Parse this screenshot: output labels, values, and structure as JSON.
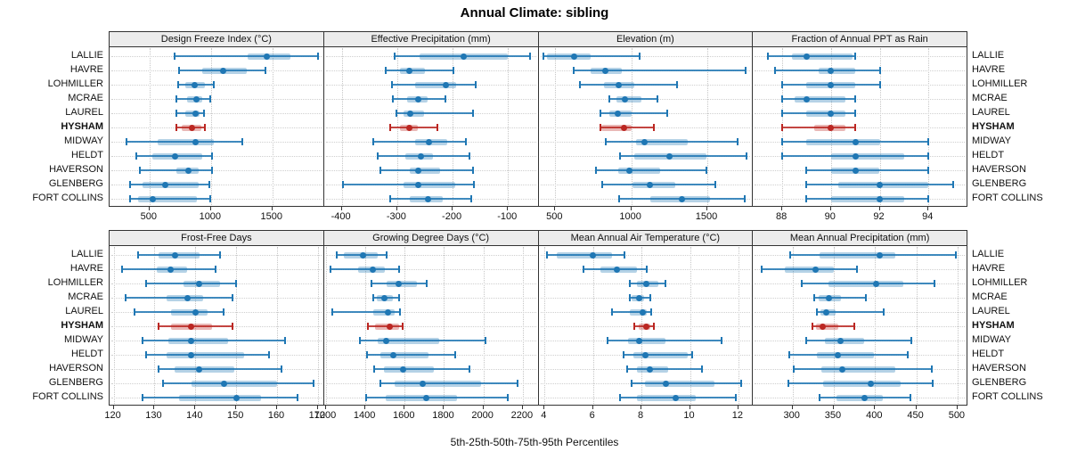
{
  "title": "Annual Climate: sibling",
  "footer": "5th-25th-50th-75th-95th Percentiles",
  "colors": {
    "series": "#1f77b4",
    "highlight": "#bb2722",
    "header_bg": "#ececec",
    "panel_border": "#333333",
    "grid": "#c9c9c9"
  },
  "chart_data": {
    "type": "dot-whisker-trellis",
    "layout": {
      "rows": 2,
      "cols": 4,
      "grid": "dotted",
      "station_labels": "both-sides"
    },
    "percentile_levels": [
      5,
      25,
      50,
      75,
      95
    ],
    "stations": [
      "LALLIE",
      "HAVRE",
      "LOHMILLER",
      "MCRAE",
      "LAUREL",
      "HYSHAM",
      "MIDWAY",
      "HELDT",
      "HAVERSON",
      "GLENBERG",
      "FORT COLLINS"
    ],
    "highlighted_station": "HYSHAM",
    "panels": [
      {
        "title": "Design Freeze Index (°C)",
        "row": 0,
        "col": 0,
        "ticks": [
          500,
          1000,
          1500
        ],
        "xlim": [
          175,
          1920
        ],
        "series": [
          [
            705,
            1300,
            1455,
            1650,
            1870
          ],
          [
            740,
            930,
            1100,
            1290,
            1440
          ],
          [
            730,
            790,
            865,
            950,
            1020
          ],
          [
            722,
            805,
            885,
            930,
            995
          ],
          [
            715,
            790,
            875,
            910,
            945
          ],
          [
            715,
            760,
            845,
            920,
            950
          ],
          [
            310,
            570,
            875,
            1020,
            1255
          ],
          [
            395,
            525,
            705,
            930,
            1005
          ],
          [
            420,
            715,
            820,
            900,
            1010
          ],
          [
            345,
            445,
            625,
            900,
            985
          ],
          [
            340,
            410,
            530,
            885,
            995
          ]
        ]
      },
      {
        "title": "Effective Precipitation (mm)",
        "row": 0,
        "col": 1,
        "ticks": [
          -400,
          -300,
          -200,
          -100
        ],
        "xlim": [
          -432,
          -45
        ],
        "series": [
          [
            -305,
            -260,
            -180,
            -100,
            -60
          ],
          [
            -320,
            -295,
            -278,
            -250,
            -198
          ],
          [
            -310,
            -268,
            -212,
            -194,
            -158
          ],
          [
            -308,
            -282,
            -262,
            -245,
            -213
          ],
          [
            -302,
            -288,
            -277,
            -252,
            -163
          ],
          [
            -312,
            -295,
            -278,
            -262,
            -228
          ],
          [
            -343,
            -268,
            -243,
            -210,
            -176
          ],
          [
            -335,
            -285,
            -257,
            -235,
            -170
          ],
          [
            -330,
            -278,
            -262,
            -222,
            -163
          ],
          [
            -398,
            -288,
            -262,
            -196,
            -162
          ],
          [
            -313,
            -277,
            -245,
            -218,
            -167
          ]
        ]
      },
      {
        "title": "Elevation (m)",
        "row": 0,
        "col": 2,
        "ticks": [
          500,
          1000,
          1500
        ],
        "xlim": [
          390,
          1800
        ],
        "series": [
          [
            420,
            445,
            625,
            735,
            1055
          ],
          [
            620,
            735,
            827,
            940,
            1750
          ],
          [
            660,
            820,
            915,
            1020,
            1300
          ],
          [
            855,
            905,
            960,
            1065,
            1170
          ],
          [
            795,
            855,
            910,
            1000,
            1235
          ],
          [
            795,
            805,
            950,
            1005,
            1150
          ],
          [
            830,
            1030,
            1085,
            1370,
            1700
          ],
          [
            925,
            1020,
            1250,
            1495,
            1755
          ],
          [
            765,
            915,
            985,
            1190,
            1495
          ],
          [
            810,
            1005,
            1120,
            1290,
            1555
          ],
          [
            920,
            1125,
            1335,
            1520,
            1745
          ]
        ]
      },
      {
        "title": "Fraction of Annual PPT as Rain",
        "row": 0,
        "col": 3,
        "ticks": [
          88,
          90,
          92,
          94
        ],
        "xlim": [
          86.8,
          95.6
        ],
        "series": [
          [
            87.4,
            88.4,
            89,
            90.9,
            91
          ],
          [
            87.7,
            89.5,
            90,
            91,
            92
          ],
          [
            88,
            89,
            90,
            91,
            92
          ],
          [
            88,
            88.5,
            89,
            90.6,
            91
          ],
          [
            88,
            89,
            90,
            90.6,
            91
          ],
          [
            88,
            89.3,
            90,
            90.6,
            91
          ],
          [
            88,
            89,
            91,
            92,
            94
          ],
          [
            88,
            90,
            91,
            93,
            94
          ],
          [
            89,
            90,
            91,
            92,
            94
          ],
          [
            89,
            90.3,
            92,
            94,
            95
          ],
          [
            89,
            90,
            92,
            93,
            94
          ]
        ]
      },
      {
        "title": "Frost-Free Days",
        "row": 1,
        "col": 0,
        "ticks": [
          120,
          130,
          140,
          150,
          160,
          170
        ],
        "xlim": [
          119,
          171.5
        ],
        "series": [
          [
            126,
            131,
            135,
            141,
            146
          ],
          [
            122,
            130.5,
            134,
            138,
            145
          ],
          [
            128,
            137,
            141,
            146,
            150
          ],
          [
            123,
            133,
            138,
            142,
            149
          ],
          [
            125,
            134,
            140,
            143,
            147
          ],
          [
            131,
            134,
            139,
            144,
            149
          ],
          [
            127,
            133.5,
            139,
            148,
            162
          ],
          [
            128,
            133,
            139,
            152,
            158
          ],
          [
            131,
            135,
            141,
            149.5,
            161
          ],
          [
            132,
            139,
            147,
            160,
            169
          ],
          [
            127,
            136,
            150,
            156,
            165
          ]
        ]
      },
      {
        "title": "Growing Degree Days (°C)",
        "row": 1,
        "col": 1,
        "ticks": [
          1200,
          1400,
          1600,
          1800,
          2000,
          2200
        ],
        "xlim": [
          1190,
          2280
        ],
        "series": [
          [
            1255,
            1290,
            1390,
            1465,
            1510
          ],
          [
            1225,
            1365,
            1440,
            1500,
            1570
          ],
          [
            1430,
            1510,
            1570,
            1660,
            1710
          ],
          [
            1440,
            1460,
            1495,
            1540,
            1570
          ],
          [
            1230,
            1440,
            1515,
            1550,
            1575
          ],
          [
            1415,
            1450,
            1525,
            1570,
            1590
          ],
          [
            1370,
            1465,
            1505,
            1775,
            2010
          ],
          [
            1410,
            1478,
            1540,
            1720,
            1855
          ],
          [
            1445,
            1495,
            1590,
            1750,
            1930
          ],
          [
            1475,
            1550,
            1690,
            1990,
            2175
          ],
          [
            1405,
            1505,
            1710,
            1865,
            2125
          ]
        ]
      },
      {
        "title": "Mean Annual Air Temperature (°C)",
        "row": 1,
        "col": 2,
        "ticks": [
          4,
          6,
          8,
          10,
          12
        ],
        "xlim": [
          3.75,
          12.6
        ],
        "series": [
          [
            4.1,
            4.5,
            6.0,
            6.8,
            7.3
          ],
          [
            5.6,
            6.3,
            7.0,
            7.8,
            8.2
          ],
          [
            7.5,
            7.8,
            8.2,
            8.7,
            9.0
          ],
          [
            7.5,
            7.6,
            7.9,
            8.1,
            8.35
          ],
          [
            6.8,
            7.5,
            8.05,
            8.2,
            8.4
          ],
          [
            7.7,
            7.9,
            8.2,
            8.35,
            8.5
          ],
          [
            6.6,
            7.45,
            7.9,
            9.0,
            11.3
          ],
          [
            7.25,
            7.65,
            8.15,
            9.9,
            10.1
          ],
          [
            7.4,
            7.8,
            8.35,
            9.1,
            10.5
          ],
          [
            7.6,
            8.15,
            9.0,
            11.0,
            12.1
          ],
          [
            7.1,
            7.8,
            9.4,
            10.25,
            11.9
          ]
        ]
      },
      {
        "title": "Mean Annual Precipitation (mm)",
        "row": 1,
        "col": 3,
        "ticks": [
          300,
          350,
          400,
          450,
          500
        ],
        "xlim": [
          252,
          512
        ],
        "series": [
          [
            297,
            333,
            406,
            425,
            498
          ],
          [
            262,
            291,
            328,
            350,
            378
          ],
          [
            311,
            343,
            401,
            434,
            472
          ],
          [
            326,
            332,
            344,
            359,
            389
          ],
          [
            330,
            334,
            341,
            352,
            411
          ],
          [
            324,
            328,
            337,
            355,
            375
          ],
          [
            316,
            339,
            358,
            387,
            444
          ],
          [
            296,
            329,
            355,
            399,
            440
          ],
          [
            301,
            335,
            360,
            424,
            469
          ],
          [
            295,
            337,
            395,
            431,
            470
          ],
          [
            333,
            353,
            387,
            409,
            443
          ]
        ]
      }
    ]
  }
}
